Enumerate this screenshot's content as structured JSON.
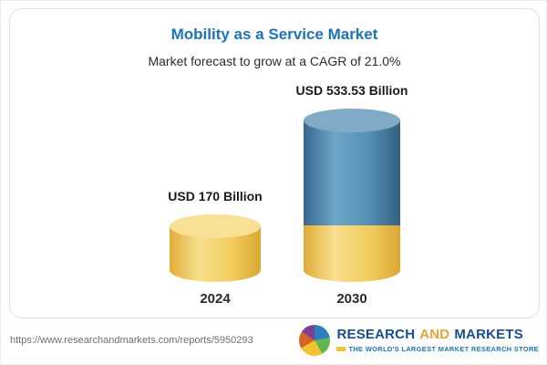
{
  "header": {
    "title": "Mobility as a Service Market",
    "subtitle": "Market forecast to grow at a CAGR of 21.0%"
  },
  "chart_data": {
    "type": "bar",
    "title": "Mobility as a Service Market",
    "subtitle": "Market forecast to grow at a CAGR of 21.0%",
    "unit": "USD Billion",
    "categories": [
      "2024",
      "2030"
    ],
    "values": [
      170,
      533.53
    ],
    "value_labels": [
      "USD 170 Billion",
      "USD 533.53 Billion"
    ],
    "cagr": "21.0%",
    "bar_style": "3d-cylinder",
    "legend": "none",
    "grid": false,
    "colors": {
      "base_segment": "#f2cd5e",
      "growth_segment": "#5590b4"
    }
  },
  "bars": [
    {
      "year": "2024",
      "value_label": "USD 170 Billion"
    },
    {
      "year": "2030",
      "value_label": "USD 533.53 Billion"
    }
  ],
  "footer": {
    "url": "https://www.researchandmarkets.com/reports/5950293",
    "logo": {
      "word1": "RESEARCH",
      "word2": "AND",
      "word3": "MARKETS",
      "tagline": "THE WORLD'S LARGEST MARKET RESEARCH STORE"
    }
  }
}
